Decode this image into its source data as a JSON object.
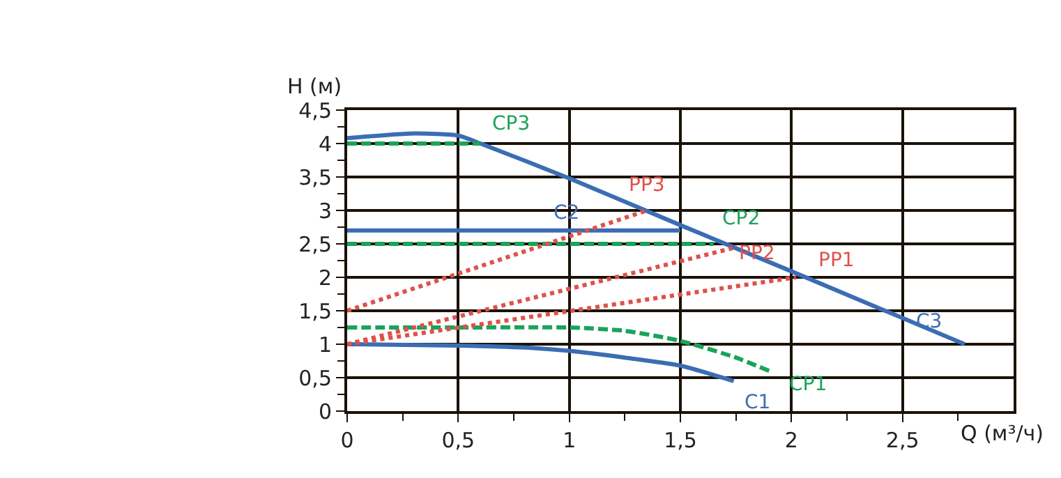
{
  "chart_data": {
    "type": "line",
    "xlabel": "Q (м³/ч)",
    "ylabel": "H (м)",
    "xlim": [
      0,
      3
    ],
    "ylim": [
      0,
      4.5
    ],
    "xticks": [
      0,
      {
        "value": 0.25,
        "label": null
      },
      {
        "value": 0.5,
        "label": "0,5"
      },
      {
        "value": 0.75,
        "label": null
      },
      1,
      {
        "value": 1.25,
        "label": null
      },
      {
        "value": 1.5,
        "label": "1,5"
      },
      {
        "value": 1.75,
        "label": null
      },
      2,
      {
        "value": 2.25,
        "label": null
      },
      {
        "value": 2.5,
        "label": "2,5"
      },
      {
        "value": 2.75,
        "label": null
      }
    ],
    "yticks": [
      0,
      {
        "value": 0.25,
        "label": null
      },
      {
        "value": 0.5,
        "label": "0,5"
      },
      {
        "value": 0.75,
        "label": null
      },
      1,
      {
        "value": 1.25,
        "label": null
      },
      {
        "value": 1.5,
        "label": "1,5"
      },
      {
        "value": 1.75,
        "label": null
      },
      2,
      {
        "value": 2.25,
        "label": null
      },
      {
        "value": 2.5,
        "label": "2,5"
      },
      {
        "value": 2.75,
        "label": null
      },
      3,
      {
        "value": 3.25,
        "label": null
      },
      {
        "value": 3.5,
        "label": "3,5"
      },
      {
        "value": 3.75,
        "label": null
      },
      4,
      {
        "value": 4.25,
        "label": null
      },
      {
        "value": 4.5,
        "label": "4,5"
      }
    ],
    "grid": true,
    "legend": false,
    "marker": "none",
    "series": [
      {
        "name": "C1",
        "color": "#3b6db3",
        "line_style": "solid",
        "x": [
          0,
          0.5,
          0.8,
          1,
          1.25,
          1.5,
          1.74
        ],
        "values": [
          1.0,
          0.98,
          0.95,
          0.9,
          0.8,
          0.68,
          0.45
        ]
      },
      {
        "name": "C2",
        "color": "#3b6db3",
        "line_style": "solid",
        "x": [
          0,
          1.5
        ],
        "values": [
          2.7,
          2.7
        ]
      },
      {
        "name": "C3",
        "color": "#3b6db3",
        "line_style": "solid",
        "x": [
          0,
          0.3,
          0.5,
          0.6,
          1,
          1.5,
          2,
          2.78
        ],
        "values": [
          4.08,
          4.15,
          4.12,
          4.0,
          3.48,
          2.78,
          2.09,
          1.0
        ]
      },
      {
        "name": "CP1",
        "color": "#1aa35a",
        "line_style": "dashed",
        "x": [
          0,
          0.5,
          1,
          1.25,
          1.5,
          1.75,
          1.9
        ],
        "values": [
          1.25,
          1.25,
          1.25,
          1.2,
          1.05,
          0.8,
          0.6
        ]
      },
      {
        "name": "CP2",
        "color": "#1aa35a",
        "line_style": "dashed",
        "x": [
          0,
          1.65
        ],
        "values": [
          2.5,
          2.5
        ]
      },
      {
        "name": "CP3",
        "color": "#1aa35a",
        "line_style": "dashed",
        "x": [
          0,
          0.6
        ],
        "values": [
          4.0,
          4.0
        ]
      },
      {
        "name": "PP1",
        "color": "#e0504a",
        "line_style": "dotted",
        "x": [
          0,
          2.02
        ],
        "values": [
          1.0,
          2.0
        ]
      },
      {
        "name": "PP2",
        "color": "#e0504a",
        "line_style": "dotted",
        "x": [
          0,
          1.74
        ],
        "values": [
          1.0,
          2.44
        ]
      },
      {
        "name": "PP3",
        "color": "#e0504a",
        "line_style": "dotted",
        "x": [
          0,
          1.35
        ],
        "values": [
          1.5,
          3.0
        ]
      }
    ]
  }
}
